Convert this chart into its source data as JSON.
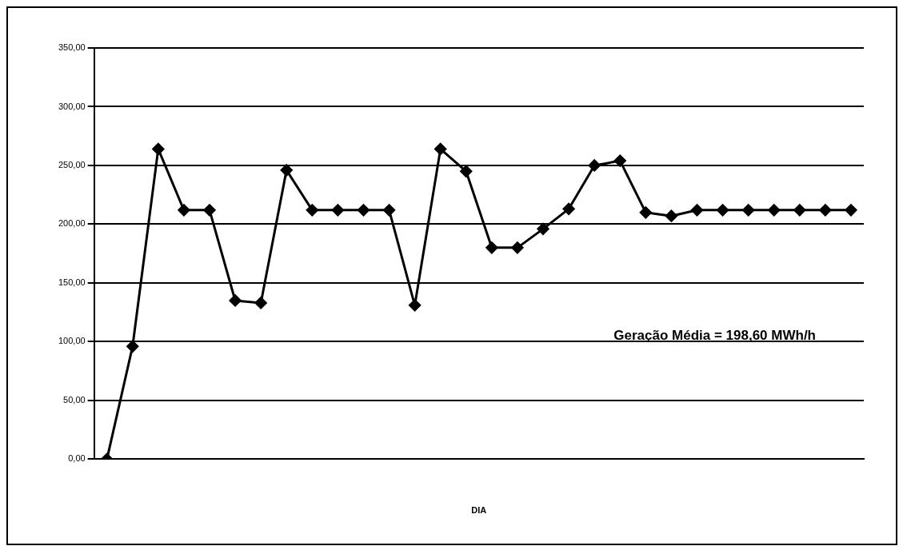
{
  "chart_data": {
    "type": "line",
    "xlabel": "DIA",
    "categories": [
      null,
      null,
      null,
      null,
      null,
      null,
      null,
      null,
      null,
      null,
      null,
      null,
      null,
      null,
      null,
      null,
      null,
      null,
      null,
      null,
      null,
      null,
      null,
      null,
      null,
      null,
      null,
      null,
      null,
      null
    ],
    "series": [
      {
        "color": "#000000",
        "values": [
          0,
          96,
          264,
          212,
          212,
          135,
          133,
          246,
          212,
          212,
          212,
          212,
          131,
          264,
          245,
          180,
          180,
          196,
          213,
          250,
          254,
          210,
          207,
          212,
          212,
          212,
          212,
          212,
          212,
          212
        ]
      }
    ],
    "ylim": [
      0,
      350
    ],
    "yticks": [
      {
        "value": 0,
        "label": "0,00"
      },
      {
        "value": 50,
        "label": "50,00"
      },
      {
        "value": 100,
        "label": "100,00"
      },
      {
        "value": 150,
        "label": "150,00"
      },
      {
        "value": 200,
        "label": "200,00"
      },
      {
        "value": 250,
        "label": "250,00"
      },
      {
        "value": 300,
        "label": "300,00"
      },
      {
        "value": 350,
        "label": "350,00"
      }
    ],
    "grid": "y",
    "legend": false,
    "marker": "diamond",
    "line_style": "solid",
    "annotations": [
      "Geração Média = 198,60 MWh/h"
    ]
  }
}
